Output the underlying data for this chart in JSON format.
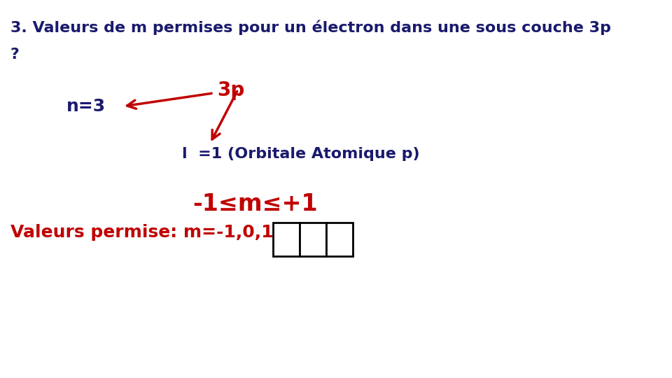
{
  "title_line1": "3. Valeurs de m permises pour un électron dans une sous couche 3p",
  "title_line2": "?",
  "label_3p": "3p",
  "label_n3": "n=3",
  "label_l": "l  =1 (Orbitale Atomique p)",
  "label_range": "-1≤m≤+1",
  "label_valeurs": "Valeurs permise: m=-1,0,1",
  "title_color": "#1a1a6e",
  "red_color": "#c00000",
  "dark_navy": "#1a1a6e",
  "bg_color": "#ffffff"
}
